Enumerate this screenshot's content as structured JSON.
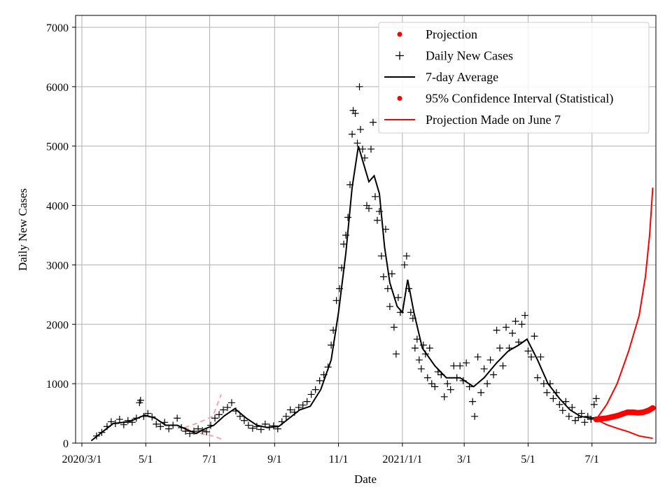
{
  "chart_data": {
    "type": "line",
    "title": "",
    "xlabel": "Date",
    "ylabel": "Daily New Cases",
    "x_range": [
      "2020-02-24",
      "2021-08-31"
    ],
    "ylim": [
      0,
      7200
    ],
    "grid": true,
    "legend_position": "top-right",
    "x_ticks": [
      {
        "date": "2020-03-01",
        "label": "2020/3/1"
      },
      {
        "date": "2020-05-01",
        "label": "5/1"
      },
      {
        "date": "2020-07-01",
        "label": "7/1"
      },
      {
        "date": "2020-09-01",
        "label": "9/1"
      },
      {
        "date": "2020-11-01",
        "label": "11/1"
      },
      {
        "date": "2021-01-01",
        "label": "2021/1/1"
      },
      {
        "date": "2021-03-01",
        "label": "3/1"
      },
      {
        "date": "2021-05-01",
        "label": "5/1"
      },
      {
        "date": "2021-07-01",
        "label": "7/1"
      }
    ],
    "y_ticks": [
      0,
      1000,
      2000,
      3000,
      4000,
      5000,
      6000,
      7000
    ],
    "colors": {
      "cases": "#000000",
      "average": "#000000",
      "projection": "#ff0000",
      "early_interval": "#f4a6a6"
    },
    "series": [
      {
        "name": "Daily New Cases",
        "kind": "scatter-plus",
        "points": [
          [
            "2020-03-15",
            120
          ],
          [
            "2020-03-20",
            180
          ],
          [
            "2020-03-25",
            280
          ],
          [
            "2020-03-29",
            360
          ],
          [
            "2020-04-02",
            330
          ],
          [
            "2020-04-06",
            400
          ],
          [
            "2020-04-10",
            310
          ],
          [
            "2020-04-14",
            380
          ],
          [
            "2020-04-18",
            350
          ],
          [
            "2020-04-22",
            420
          ],
          [
            "2020-04-25",
            680
          ],
          [
            "2020-04-26",
            720
          ],
          [
            "2020-04-29",
            450
          ],
          [
            "2020-05-03",
            500
          ],
          [
            "2020-05-07",
            440
          ],
          [
            "2020-05-11",
            320
          ],
          [
            "2020-05-15",
            280
          ],
          [
            "2020-05-19",
            350
          ],
          [
            "2020-05-23",
            240
          ],
          [
            "2020-05-27",
            300
          ],
          [
            "2020-05-31",
            420
          ],
          [
            "2020-06-04",
            260
          ],
          [
            "2020-06-08",
            200
          ],
          [
            "2020-06-12",
            160
          ],
          [
            "2020-06-16",
            200
          ],
          [
            "2020-06-20",
            240
          ],
          [
            "2020-06-24",
            210
          ],
          [
            "2020-06-28",
            190
          ],
          [
            "2020-07-02",
            300
          ],
          [
            "2020-07-06",
            420
          ],
          [
            "2020-07-10",
            480
          ],
          [
            "2020-07-14",
            560
          ],
          [
            "2020-07-18",
            600
          ],
          [
            "2020-07-22",
            680
          ],
          [
            "2020-07-26",
            540
          ],
          [
            "2020-07-30",
            450
          ],
          [
            "2020-08-03",
            380
          ],
          [
            "2020-08-07",
            300
          ],
          [
            "2020-08-11",
            250
          ],
          [
            "2020-08-15",
            280
          ],
          [
            "2020-08-19",
            230
          ],
          [
            "2020-08-23",
            320
          ],
          [
            "2020-08-27",
            270
          ],
          [
            "2020-08-31",
            290
          ],
          [
            "2020-09-04",
            240
          ],
          [
            "2020-09-08",
            360
          ],
          [
            "2020-09-12",
            450
          ],
          [
            "2020-09-16",
            560
          ],
          [
            "2020-09-20",
            520
          ],
          [
            "2020-09-24",
            600
          ],
          [
            "2020-09-28",
            640
          ],
          [
            "2020-10-02",
            700
          ],
          [
            "2020-10-06",
            820
          ],
          [
            "2020-10-10",
            900
          ],
          [
            "2020-10-14",
            1050
          ],
          [
            "2020-10-18",
            1150
          ],
          [
            "2020-10-22",
            1280
          ],
          [
            "2020-10-25",
            1650
          ],
          [
            "2020-10-27",
            1900
          ],
          [
            "2020-10-30",
            2400
          ],
          [
            "2020-11-02",
            2600
          ],
          [
            "2020-11-04",
            2950
          ],
          [
            "2020-11-06",
            3350
          ],
          [
            "2020-11-08",
            3500
          ],
          [
            "2020-11-10",
            3800
          ],
          [
            "2020-11-12",
            4350
          ],
          [
            "2020-11-14",
            5200
          ],
          [
            "2020-11-15",
            5600
          ],
          [
            "2020-11-17",
            5550
          ],
          [
            "2020-11-19",
            5050
          ],
          [
            "2020-11-21",
            6000
          ],
          [
            "2020-11-22",
            5280
          ],
          [
            "2020-11-24",
            4950
          ],
          [
            "2020-11-26",
            4800
          ],
          [
            "2020-11-28",
            4000
          ],
          [
            "2020-11-30",
            3950
          ],
          [
            "2020-12-02",
            4950
          ],
          [
            "2020-12-04",
            5400
          ],
          [
            "2020-12-06",
            4150
          ],
          [
            "2020-12-08",
            3750
          ],
          [
            "2020-12-10",
            3900
          ],
          [
            "2020-12-12",
            3150
          ],
          [
            "2020-12-14",
            2800
          ],
          [
            "2020-12-16",
            3600
          ],
          [
            "2020-12-18",
            2600
          ],
          [
            "2020-12-20",
            2300
          ],
          [
            "2020-12-22",
            2850
          ],
          [
            "2020-12-24",
            1950
          ],
          [
            "2020-12-26",
            1500
          ],
          [
            "2020-12-28",
            2450
          ],
          [
            "2020-12-30",
            2200
          ],
          [
            "2021-01-03",
            3000
          ],
          [
            "2021-01-05",
            3150
          ],
          [
            "2021-01-07",
            2600
          ],
          [
            "2021-01-09",
            2200
          ],
          [
            "2021-01-11",
            2100
          ],
          [
            "2021-01-13",
            1600
          ],
          [
            "2021-01-15",
            1750
          ],
          [
            "2021-01-17",
            1400
          ],
          [
            "2021-01-19",
            1250
          ],
          [
            "2021-01-21",
            1650
          ],
          [
            "2021-01-23",
            1500
          ],
          [
            "2021-01-25",
            1100
          ],
          [
            "2021-01-27",
            1600
          ],
          [
            "2021-01-29",
            1000
          ],
          [
            "2021-02-01",
            950
          ],
          [
            "2021-02-04",
            1200
          ],
          [
            "2021-02-07",
            1150
          ],
          [
            "2021-02-10",
            780
          ],
          [
            "2021-02-13",
            1000
          ],
          [
            "2021-02-16",
            900
          ],
          [
            "2021-02-19",
            1300
          ],
          [
            "2021-02-22",
            1100
          ],
          [
            "2021-02-25",
            1300
          ],
          [
            "2021-02-28",
            1050
          ],
          [
            "2021-03-03",
            1350
          ],
          [
            "2021-03-06",
            950
          ],
          [
            "2021-03-09",
            700
          ],
          [
            "2021-03-11",
            450
          ],
          [
            "2021-03-14",
            1450
          ],
          [
            "2021-03-17",
            850
          ],
          [
            "2021-03-20",
            1250
          ],
          [
            "2021-03-23",
            1000
          ],
          [
            "2021-03-26",
            1400
          ],
          [
            "2021-03-29",
            1150
          ],
          [
            "2021-04-01",
            1900
          ],
          [
            "2021-04-04",
            1600
          ],
          [
            "2021-04-07",
            1300
          ],
          [
            "2021-04-10",
            1950
          ],
          [
            "2021-04-13",
            1600
          ],
          [
            "2021-04-16",
            1850
          ],
          [
            "2021-04-19",
            2050
          ],
          [
            "2021-04-22",
            1700
          ],
          [
            "2021-04-25",
            2000
          ],
          [
            "2021-04-28",
            2150
          ],
          [
            "2021-05-01",
            1550
          ],
          [
            "2021-05-04",
            1450
          ],
          [
            "2021-05-07",
            1800
          ],
          [
            "2021-05-10",
            1100
          ],
          [
            "2021-05-13",
            1450
          ],
          [
            "2021-05-16",
            1000
          ],
          [
            "2021-05-19",
            850
          ],
          [
            "2021-05-22",
            1000
          ],
          [
            "2021-05-25",
            750
          ],
          [
            "2021-05-28",
            850
          ],
          [
            "2021-05-31",
            650
          ],
          [
            "2021-06-03",
            550
          ],
          [
            "2021-06-06",
            700
          ],
          [
            "2021-06-09",
            450
          ],
          [
            "2021-06-12",
            600
          ],
          [
            "2021-06-15",
            380
          ],
          [
            "2021-06-18",
            430
          ],
          [
            "2021-06-21",
            500
          ],
          [
            "2021-06-24",
            350
          ],
          [
            "2021-06-27",
            450
          ],
          [
            "2021-06-30",
            400
          ],
          [
            "2021-07-03",
            650
          ],
          [
            "2021-07-05",
            750
          ]
        ]
      },
      {
        "name": "7-day Average",
        "kind": "line",
        "points": [
          [
            "2020-03-10",
            40
          ],
          [
            "2020-03-20",
            180
          ],
          [
            "2020-03-31",
            330
          ],
          [
            "2020-04-15",
            360
          ],
          [
            "2020-04-30",
            470
          ],
          [
            "2020-05-10",
            420
          ],
          [
            "2020-05-20",
            300
          ],
          [
            "2020-05-31",
            300
          ],
          [
            "2020-06-10",
            220
          ],
          [
            "2020-06-18",
            160
          ],
          [
            "2020-06-25",
            230
          ],
          [
            "2020-07-05",
            300
          ],
          [
            "2020-07-15",
            460
          ],
          [
            "2020-07-25",
            580
          ],
          [
            "2020-08-05",
            420
          ],
          [
            "2020-08-15",
            300
          ],
          [
            "2020-08-25",
            260
          ],
          [
            "2020-09-05",
            280
          ],
          [
            "2020-09-15",
            420
          ],
          [
            "2020-09-25",
            560
          ],
          [
            "2020-10-05",
            620
          ],
          [
            "2020-10-15",
            900
          ],
          [
            "2020-10-25",
            1400
          ],
          [
            "2020-11-01",
            2200
          ],
          [
            "2020-11-08",
            3200
          ],
          [
            "2020-11-14",
            4300
          ],
          [
            "2020-11-20",
            5000
          ],
          [
            "2020-11-25",
            4700
          ],
          [
            "2020-11-30",
            4400
          ],
          [
            "2020-12-05",
            4500
          ],
          [
            "2020-12-10",
            4200
          ],
          [
            "2020-12-15",
            3300
          ],
          [
            "2020-12-20",
            2700
          ],
          [
            "2020-12-27",
            2300
          ],
          [
            "2021-01-01",
            2200
          ],
          [
            "2021-01-06",
            2750
          ],
          [
            "2021-01-12",
            2200
          ],
          [
            "2021-01-20",
            1600
          ],
          [
            "2021-02-01",
            1300
          ],
          [
            "2021-02-12",
            1100
          ],
          [
            "2021-02-25",
            1100
          ],
          [
            "2021-03-10",
            950
          ],
          [
            "2021-03-20",
            1100
          ],
          [
            "2021-04-01",
            1350
          ],
          [
            "2021-04-12",
            1550
          ],
          [
            "2021-04-22",
            1650
          ],
          [
            "2021-04-30",
            1750
          ],
          [
            "2021-05-10",
            1400
          ],
          [
            "2021-05-20",
            1000
          ],
          [
            "2021-05-31",
            750
          ],
          [
            "2021-06-10",
            560
          ],
          [
            "2021-06-20",
            450
          ],
          [
            "2021-06-30",
            420
          ],
          [
            "2021-07-05",
            430
          ]
        ]
      },
      {
        "name": "Projection",
        "kind": "dots",
        "points": [
          [
            "2021-07-05",
            400
          ],
          [
            "2021-07-10",
            410
          ],
          [
            "2021-07-15",
            420
          ],
          [
            "2021-07-20",
            440
          ],
          [
            "2021-07-25",
            460
          ],
          [
            "2021-07-30",
            490
          ],
          [
            "2021-08-04",
            520
          ],
          [
            "2021-08-09",
            520
          ],
          [
            "2021-08-14",
            510
          ],
          [
            "2021-08-19",
            520
          ],
          [
            "2021-08-24",
            550
          ],
          [
            "2021-08-28",
            590
          ]
        ]
      },
      {
        "name": "95% Confidence Interval (Statistical)",
        "kind": "dots",
        "points": []
      },
      {
        "name": "Projection Made on June 7",
        "kind": "band-lines",
        "upper": [
          [
            "2021-07-05",
            400
          ],
          [
            "2021-07-15",
            650
          ],
          [
            "2021-07-25",
            1000
          ],
          [
            "2021-08-05",
            1550
          ],
          [
            "2021-08-15",
            2150
          ],
          [
            "2021-08-21",
            2800
          ],
          [
            "2021-08-25",
            3500
          ],
          [
            "2021-08-28",
            4300
          ]
        ],
        "lower": [
          [
            "2021-07-05",
            400
          ],
          [
            "2021-07-15",
            310
          ],
          [
            "2021-07-25",
            250
          ],
          [
            "2021-08-05",
            190
          ],
          [
            "2021-08-15",
            120
          ],
          [
            "2021-08-28",
            80
          ]
        ]
      },
      {
        "name": "early-interval",
        "kind": "dashed-lines",
        "upper": [
          [
            "2020-06-07",
            260
          ],
          [
            "2020-06-20",
            340
          ],
          [
            "2020-07-04",
            450
          ],
          [
            "2020-07-12",
            820
          ]
        ],
        "lower": [
          [
            "2020-06-07",
            260
          ],
          [
            "2020-06-20",
            170
          ],
          [
            "2020-07-04",
            120
          ],
          [
            "2020-07-12",
            70
          ]
        ]
      }
    ],
    "legend": [
      {
        "label": "Projection",
        "marker": "dot",
        "color": "#ff0000"
      },
      {
        "label": "Daily New Cases",
        "marker": "plus",
        "color": "#000000"
      },
      {
        "label": "7-day Average",
        "marker": "line",
        "color": "#000000"
      },
      {
        "label": "95% Confidence Interval (Statistical)",
        "marker": "dot",
        "color": "#ff0000"
      },
      {
        "label": "Projection Made on June 7",
        "marker": "line",
        "color": "#ff0000"
      }
    ]
  }
}
